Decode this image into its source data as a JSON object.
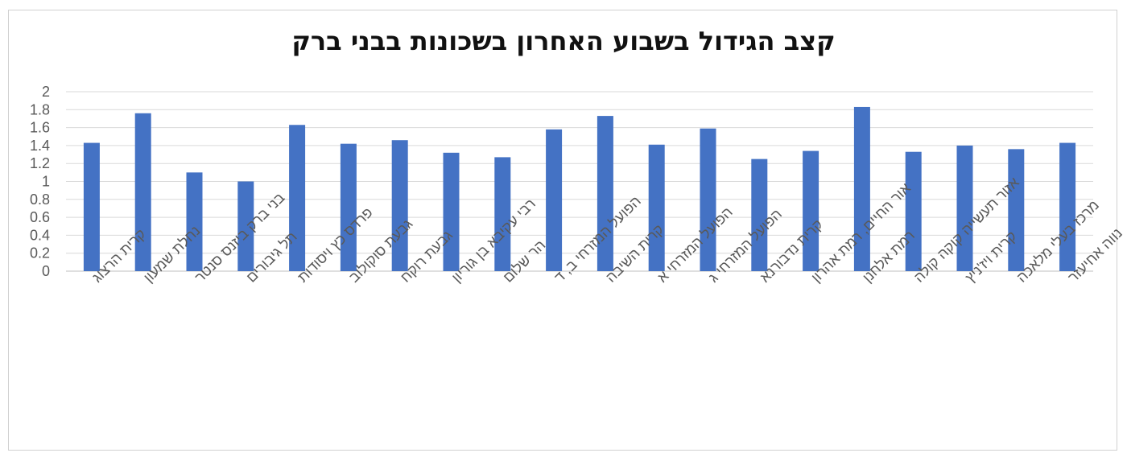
{
  "chart_data": {
    "type": "bar",
    "title": "קצב הגידול בשבוע האחרון בשכונות בבני ברק",
    "xlabel": "",
    "ylabel": "",
    "ylim": [
      0,
      2
    ],
    "yticks": [
      "0",
      "0.2",
      "0.4",
      "0.6",
      "0.8",
      "1",
      "1.2",
      "1.4",
      "1.6",
      "1.8",
      "2"
    ],
    "grid": true,
    "bar_color": "#4472C4",
    "categories": [
      "קרית הרצוג",
      "נחלת שמעון",
      "בני ברק ביזנס סנטר",
      "תל גיבורים",
      "פרדס כץ ויסודות",
      "גבעת סוקולוב",
      "גבעת רוקח",
      "רבי עקיבא בן גוריון",
      "הר שלום",
      "הפועל המזרחי ב, ד",
      "קרית השיבה",
      "הפועל המזרחי א",
      "הפועל המזרחי ג",
      "קרית נדבורנא",
      "אור החיים, רמת אהרון",
      "רמת אלחנן",
      "אזור תעשייה קוקה קולה",
      "קרית ויז'ניץ",
      "מרכז בעלי מלאכה",
      "נווה אחיעזר"
    ],
    "values": [
      1.43,
      1.76,
      1.1,
      1.0,
      1.63,
      1.42,
      1.46,
      1.32,
      1.27,
      1.58,
      1.73,
      1.41,
      1.59,
      1.25,
      1.34,
      1.83,
      1.33,
      1.4,
      1.36,
      1.43
    ]
  }
}
